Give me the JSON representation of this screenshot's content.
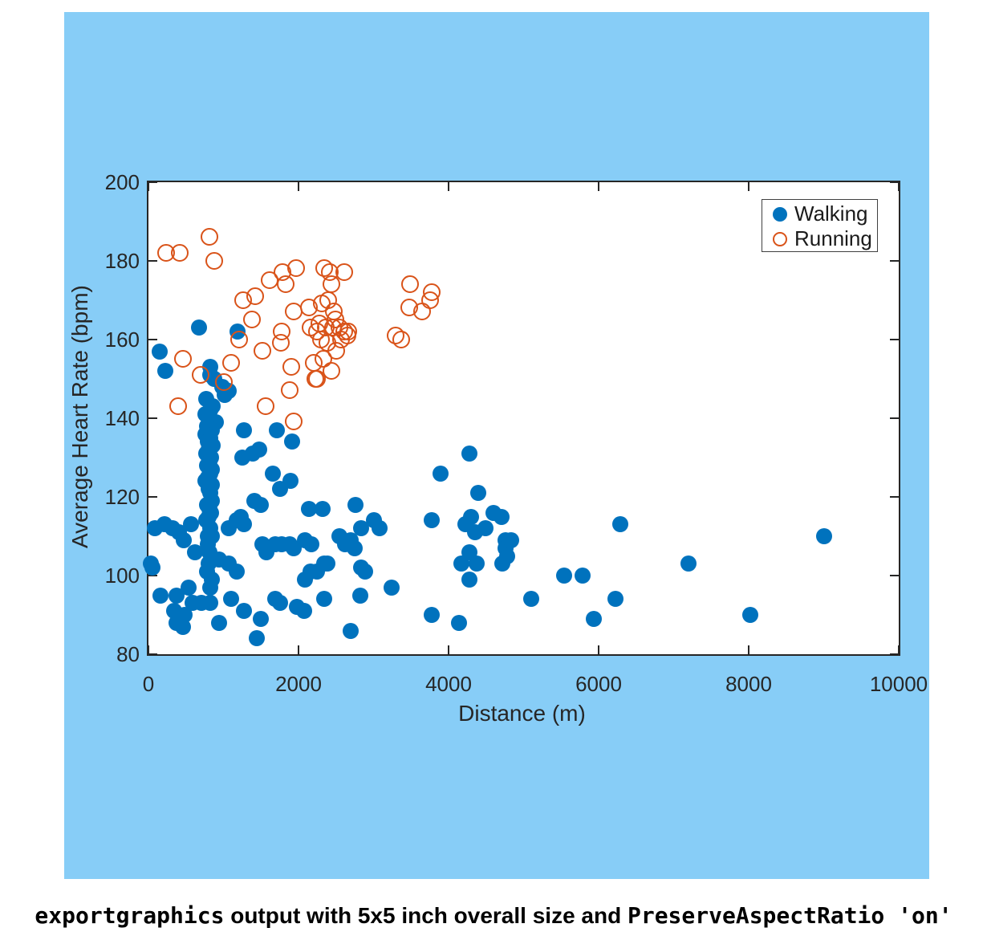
{
  "figure": {
    "background_color": "#87CDF7",
    "plot_background": "#ffffff",
    "axis_color": "#262626"
  },
  "caption": {
    "segments": [
      {
        "text": "exportgraphics",
        "code": true
      },
      {
        "text": " output with 5x5 inch overall size and ",
        "code": false
      },
      {
        "text": "PreserveAspectRatio 'on'",
        "code": true
      }
    ]
  },
  "chart_data": {
    "type": "scatter",
    "title": "",
    "xlabel": "Distance (m)",
    "ylabel": "Average Heart Rate (bpm)",
    "xlim": [
      0,
      10000
    ],
    "ylim": [
      80,
      200
    ],
    "x_ticks": [
      0,
      2000,
      4000,
      6000,
      8000,
      10000
    ],
    "y_ticks": [
      80,
      100,
      120,
      140,
      160,
      180,
      200
    ],
    "grid": false,
    "tick_direction": "in",
    "box": true,
    "legend": {
      "position": "northeast",
      "entries": [
        {
          "label": "Walking",
          "marker": "filled-circle",
          "color": "#0072BD"
        },
        {
          "label": "Running",
          "marker": "open-circle",
          "color": "#D95319"
        }
      ]
    },
    "series": [
      {
        "name": "Walking",
        "marker": "filled-circle",
        "color": "#0072BD",
        "points": [
          [
            30,
            103
          ],
          [
            50,
            102
          ],
          [
            90,
            112
          ],
          [
            150,
            157
          ],
          [
            160,
            95
          ],
          [
            210,
            113
          ],
          [
            220,
            152
          ],
          [
            320,
            112
          ],
          [
            340,
            91
          ],
          [
            370,
            95
          ],
          [
            370,
            88
          ],
          [
            410,
            111
          ],
          [
            460,
            87
          ],
          [
            470,
            109
          ],
          [
            480,
            90
          ],
          [
            530,
            97
          ],
          [
            570,
            113
          ],
          [
            590,
            93
          ],
          [
            620,
            106
          ],
          [
            670,
            163
          ],
          [
            710,
            93
          ],
          [
            770,
            145
          ],
          [
            780,
            101
          ],
          [
            800,
            103
          ],
          [
            820,
            93
          ],
          [
            820,
            97
          ],
          [
            820,
            151
          ],
          [
            820,
            153
          ],
          [
            850,
            99
          ],
          [
            860,
            143
          ],
          [
            820,
            142
          ],
          [
            880,
            150
          ],
          [
            900,
            139
          ],
          [
            940,
            88
          ],
          [
            940,
            104
          ],
          [
            980,
            148
          ],
          [
            1020,
            146
          ],
          [
            1070,
            147
          ],
          [
            1070,
            112
          ],
          [
            1070,
            103
          ],
          [
            1100,
            94
          ],
          [
            1180,
            101
          ],
          [
            1180,
            114
          ],
          [
            1190,
            162
          ],
          [
            1230,
            115
          ],
          [
            1250,
            130
          ],
          [
            1270,
            137
          ],
          [
            1270,
            113
          ],
          [
            1270,
            91
          ],
          [
            1390,
            131
          ],
          [
            1410,
            119
          ],
          [
            1440,
            84
          ],
          [
            1480,
            132
          ],
          [
            1500,
            118
          ],
          [
            1500,
            89
          ],
          [
            1520,
            108
          ],
          [
            1570,
            106
          ],
          [
            1660,
            126
          ],
          [
            1690,
            108
          ],
          [
            1690,
            94
          ],
          [
            1710,
            137
          ],
          [
            1750,
            122
          ],
          [
            1750,
            93
          ],
          [
            1780,
            108
          ],
          [
            1880,
            108
          ],
          [
            1890,
            124
          ],
          [
            1910,
            134
          ],
          [
            1940,
            107
          ],
          [
            1980,
            92
          ],
          [
            2070,
            91
          ],
          [
            2090,
            109
          ],
          [
            2090,
            99
          ],
          [
            2140,
            117
          ],
          [
            2160,
            101
          ],
          [
            2170,
            108
          ],
          [
            2250,
            101
          ],
          [
            2320,
            117
          ],
          [
            2340,
            103
          ],
          [
            2340,
            94
          ],
          [
            2390,
            103
          ],
          [
            2550,
            110
          ],
          [
            2620,
            108
          ],
          [
            2690,
            109
          ],
          [
            2690,
            86
          ],
          [
            2750,
            107
          ],
          [
            2760,
            118
          ],
          [
            2820,
            95
          ],
          [
            2830,
            112
          ],
          [
            2830,
            102
          ],
          [
            2890,
            101
          ],
          [
            3010,
            114
          ],
          [
            3080,
            112
          ],
          [
            3240,
            97
          ],
          [
            3780,
            114
          ],
          [
            3780,
            90
          ],
          [
            3890,
            126
          ],
          [
            4140,
            88
          ],
          [
            4170,
            103
          ],
          [
            4220,
            113
          ],
          [
            4280,
            131
          ],
          [
            4280,
            106
          ],
          [
            4280,
            99
          ],
          [
            4300,
            115
          ],
          [
            4350,
            111
          ],
          [
            4370,
            103
          ],
          [
            4400,
            121
          ],
          [
            4490,
            112
          ],
          [
            4600,
            116
          ],
          [
            4710,
            115
          ],
          [
            4720,
            103
          ],
          [
            4760,
            109
          ],
          [
            4760,
            107
          ],
          [
            4780,
            105
          ],
          [
            4830,
            109
          ],
          [
            5100,
            94
          ],
          [
            5540,
            100
          ],
          [
            5790,
            100
          ],
          [
            5940,
            89
          ],
          [
            6220,
            94
          ],
          [
            6290,
            113
          ],
          [
            7200,
            103
          ],
          [
            8020,
            90
          ],
          [
            9000,
            110
          ],
          [
            760,
            141
          ],
          [
            800,
            140
          ],
          [
            830,
            139
          ],
          [
            780,
            138
          ],
          [
            850,
            137
          ],
          [
            760,
            136
          ],
          [
            820,
            135
          ],
          [
            790,
            134
          ],
          [
            860,
            133
          ],
          [
            800,
            132
          ],
          [
            770,
            131
          ],
          [
            830,
            130
          ],
          [
            810,
            129
          ],
          [
            780,
            128
          ],
          [
            850,
            127
          ],
          [
            820,
            126
          ],
          [
            790,
            125
          ],
          [
            760,
            124
          ],
          [
            840,
            123
          ],
          [
            800,
            122
          ],
          [
            820,
            121
          ],
          [
            850,
            119
          ],
          [
            780,
            118
          ],
          [
            810,
            117
          ],
          [
            830,
            116
          ],
          [
            800,
            115
          ],
          [
            770,
            114
          ],
          [
            820,
            112
          ],
          [
            840,
            110
          ],
          [
            795,
            110
          ],
          [
            790,
            108
          ],
          [
            810,
            106
          ],
          [
            830,
            104
          ]
        ]
      },
      {
        "name": "Running",
        "marker": "open-circle",
        "color": "#D95319",
        "points": [
          [
            240,
            182
          ],
          [
            420,
            182
          ],
          [
            820,
            186
          ],
          [
            880,
            180
          ],
          [
            400,
            143
          ],
          [
            460,
            155
          ],
          [
            700,
            151
          ],
          [
            1010,
            149
          ],
          [
            1110,
            154
          ],
          [
            1210,
            160
          ],
          [
            1270,
            170
          ],
          [
            1390,
            165
          ],
          [
            1430,
            171
          ],
          [
            1520,
            157
          ],
          [
            1570,
            143
          ],
          [
            1620,
            175
          ],
          [
            1770,
            159
          ],
          [
            1780,
            162
          ],
          [
            1790,
            177
          ],
          [
            1830,
            174
          ],
          [
            1890,
            147
          ],
          [
            1910,
            153
          ],
          [
            1940,
            139
          ],
          [
            1940,
            167
          ],
          [
            1970,
            178
          ],
          [
            2140,
            168
          ],
          [
            2170,
            163
          ],
          [
            2210,
            154
          ],
          [
            2230,
            150
          ],
          [
            2250,
            150
          ],
          [
            2250,
            162
          ],
          [
            2280,
            164
          ],
          [
            2300,
            160
          ],
          [
            2320,
            169
          ],
          [
            2340,
            155
          ],
          [
            2350,
            178
          ],
          [
            2370,
            163
          ],
          [
            2390,
            159
          ],
          [
            2400,
            170
          ],
          [
            2425,
            177
          ],
          [
            2440,
            152
          ],
          [
            2440,
            174
          ],
          [
            2460,
            163
          ],
          [
            2480,
            167
          ],
          [
            2500,
            165
          ],
          [
            2510,
            157
          ],
          [
            2550,
            163
          ],
          [
            2570,
            160
          ],
          [
            2620,
            162
          ],
          [
            2620,
            177
          ],
          [
            2660,
            161
          ],
          [
            2670,
            162
          ],
          [
            3300,
            161
          ],
          [
            3370,
            160
          ],
          [
            3480,
            168
          ],
          [
            3490,
            174
          ],
          [
            3650,
            167
          ],
          [
            3760,
            170
          ],
          [
            3780,
            172
          ]
        ]
      }
    ]
  }
}
